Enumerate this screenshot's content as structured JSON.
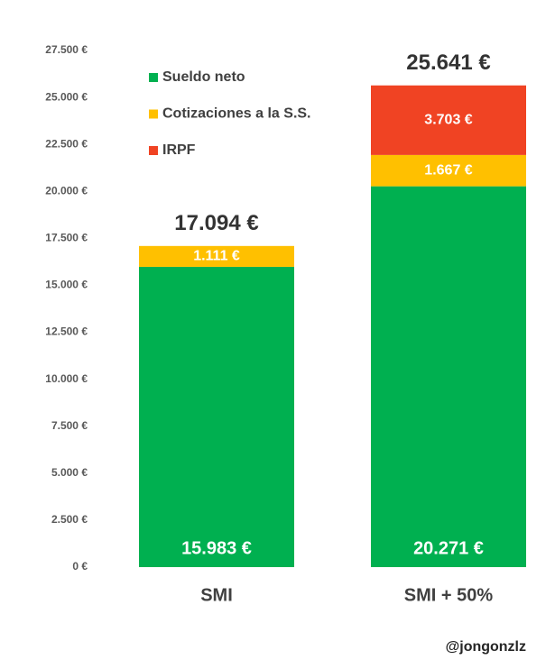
{
  "chart_data": {
    "type": "stacked_bar",
    "categories": [
      "SMI",
      "SMI + 50%"
    ],
    "series": [
      {
        "name": "Sueldo neto",
        "color": "#00b050",
        "values": [
          15983,
          20271
        ],
        "value_labels": [
          "15.983 €",
          "20.271 €"
        ]
      },
      {
        "name": "Cotizaciones a la S.S.",
        "color": "#ffc000",
        "values": [
          1111,
          1667
        ],
        "value_labels": [
          "1.111 €",
          "1.667 €"
        ]
      },
      {
        "name": "IRPF",
        "color": "#f04323",
        "values": [
          null,
          3703
        ],
        "value_labels": [
          null,
          "3.703 €"
        ]
      }
    ],
    "totals": {
      "values": [
        17094,
        25641
      ],
      "value_labels": [
        "17.094 €",
        "25.641 €"
      ]
    },
    "ylim": [
      0,
      27500
    ],
    "yticks": [
      {
        "value": 0,
        "label": "0 €"
      },
      {
        "value": 2500,
        "label": "2.500 €"
      },
      {
        "value": 5000,
        "label": "5.000 €"
      },
      {
        "value": 7500,
        "label": "7.500 €"
      },
      {
        "value": 10000,
        "label": "10.000 €"
      },
      {
        "value": 12500,
        "label": "12.500 €"
      },
      {
        "value": 15000,
        "label": "15.000 €"
      },
      {
        "value": 17500,
        "label": "17.500 €"
      },
      {
        "value": 20000,
        "label": "20.000 €"
      },
      {
        "value": 22500,
        "label": "22.500 €"
      },
      {
        "value": 25000,
        "label": "25.000 €"
      },
      {
        "value": 27500,
        "label": "27.500 €"
      }
    ],
    "grid": false,
    "legend": "upper left",
    "source": "@jongonzlz"
  }
}
